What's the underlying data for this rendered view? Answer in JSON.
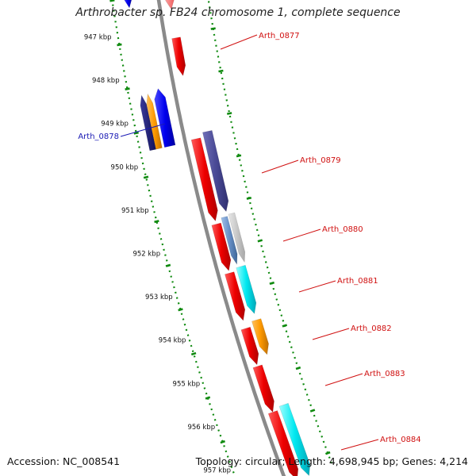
{
  "title": "Arthrobacter sp. FB24 chromosome 1, complete sequence",
  "footer": {
    "accession_label": "Accession:",
    "accession": "NC_008541",
    "topology_label": "Topology:",
    "topology": "circular;",
    "length_label": "Length:",
    "length": "4,698,945 bp;",
    "genes_label": "Genes:",
    "genes": "4,214"
  },
  "colors": {
    "backbone": "#8a8a8a",
    "ruler": "#0f8a0f",
    "label_red": "#d01010",
    "label_blue": "#1a1ab4"
  },
  "ruler_ticks": [
    "947 kbp",
    "948 kbp",
    "949 kbp",
    "950 kbp",
    "951 kbp",
    "952 kbp",
    "953 kbp",
    "954 kbp",
    "955 kbp",
    "956 kbp",
    "957 kbp"
  ],
  "gene_labels": [
    {
      "name": "Arth_0877",
      "color": "red"
    },
    {
      "name": "Arth_0878",
      "color": "blue"
    },
    {
      "name": "Arth_0879",
      "color": "red"
    },
    {
      "name": "Arth_0880",
      "color": "red"
    },
    {
      "name": "Arth_0881",
      "color": "red"
    },
    {
      "name": "Arth_0882",
      "color": "red"
    },
    {
      "name": "Arth_0883",
      "color": "red"
    },
    {
      "name": "Arth_0884",
      "color": "red"
    }
  ]
}
